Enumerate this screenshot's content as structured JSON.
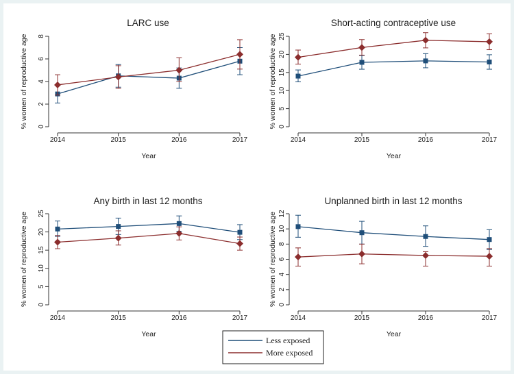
{
  "colors": {
    "less": "#1f4e79",
    "more": "#8b2d2d"
  },
  "legend": {
    "entries": [
      "Less exposed",
      "More exposed"
    ]
  },
  "chart_data": [
    {
      "type": "line",
      "title": "LARC use",
      "xlabel": "Year",
      "ylabel": "% women of reproductive age",
      "x": [
        2014,
        2015,
        2016,
        2017
      ],
      "ylim": [
        0,
        8
      ],
      "yticks": [
        0,
        2,
        4,
        6,
        8
      ],
      "series": [
        {
          "name": "Less exposed",
          "marker": "square",
          "values": [
            2.9,
            4.5,
            4.3,
            5.8
          ],
          "ci_low": [
            2.1,
            3.5,
            3.4,
            4.6
          ],
          "ci_high": [
            3.7,
            5.5,
            5.2,
            7.0
          ]
        },
        {
          "name": "More exposed",
          "marker": "diamond",
          "values": [
            3.7,
            4.4,
            5.0,
            6.4
          ],
          "ci_low": [
            2.8,
            3.4,
            4.0,
            5.1
          ],
          "ci_high": [
            4.6,
            5.4,
            6.1,
            7.7
          ]
        }
      ]
    },
    {
      "type": "line",
      "title": "Short-acting contraceptive use",
      "xlabel": "Year",
      "ylabel": "% women of reproductive age",
      "x": [
        2014,
        2015,
        2016,
        2017
      ],
      "ylim": [
        0,
        25
      ],
      "yticks": [
        0,
        5,
        10,
        15,
        20,
        25
      ],
      "series": [
        {
          "name": "Less exposed",
          "marker": "square",
          "values": [
            14.0,
            17.8,
            18.2,
            17.9
          ],
          "ci_low": [
            12.4,
            15.9,
            16.3,
            15.9
          ],
          "ci_high": [
            15.7,
            19.7,
            20.2,
            19.9
          ]
        },
        {
          "name": "More exposed",
          "marker": "diamond",
          "values": [
            19.2,
            21.9,
            23.9,
            23.5
          ],
          "ci_low": [
            17.3,
            19.8,
            21.8,
            21.3
          ],
          "ci_high": [
            21.2,
            24.1,
            26.0,
            25.7
          ]
        }
      ]
    },
    {
      "type": "line",
      "title": "Any birth in last 12 months",
      "xlabel": "Year",
      "ylabel": "% women of reproductive age",
      "x": [
        2014,
        2015,
        2016,
        2017
      ],
      "ylim": [
        0,
        25
      ],
      "yticks": [
        0,
        5,
        10,
        15,
        20,
        25
      ],
      "series": [
        {
          "name": "Less exposed",
          "marker": "square",
          "values": [
            20.8,
            21.5,
            22.3,
            19.9
          ],
          "ci_low": [
            18.8,
            19.3,
            20.2,
            17.9
          ],
          "ci_high": [
            23.0,
            23.8,
            24.4,
            22.0
          ]
        },
        {
          "name": "More exposed",
          "marker": "diamond",
          "values": [
            17.2,
            18.3,
            19.6,
            16.8
          ],
          "ci_low": [
            15.4,
            16.4,
            17.8,
            15.0
          ],
          "ci_high": [
            19.0,
            20.3,
            21.4,
            18.6
          ]
        }
      ]
    },
    {
      "type": "line",
      "title": "Unplanned birth in last 12 months",
      "xlabel": "Year",
      "ylabel": "% women of reproductive age",
      "x": [
        2014,
        2015,
        2016,
        2017
      ],
      "ylim": [
        0,
        12
      ],
      "yticks": [
        0,
        2,
        4,
        6,
        8,
        10,
        12
      ],
      "series": [
        {
          "name": "Less exposed",
          "marker": "square",
          "values": [
            10.3,
            9.5,
            9.0,
            8.6
          ],
          "ci_low": [
            8.9,
            8.0,
            7.7,
            7.3
          ],
          "ci_high": [
            11.8,
            11.0,
            10.4,
            9.9
          ]
        },
        {
          "name": "More exposed",
          "marker": "diamond",
          "values": [
            6.3,
            6.7,
            6.5,
            6.4
          ],
          "ci_low": [
            5.1,
            5.4,
            5.1,
            5.1
          ],
          "ci_high": [
            7.5,
            8.0,
            7.0,
            7.4
          ]
        }
      ]
    }
  ]
}
